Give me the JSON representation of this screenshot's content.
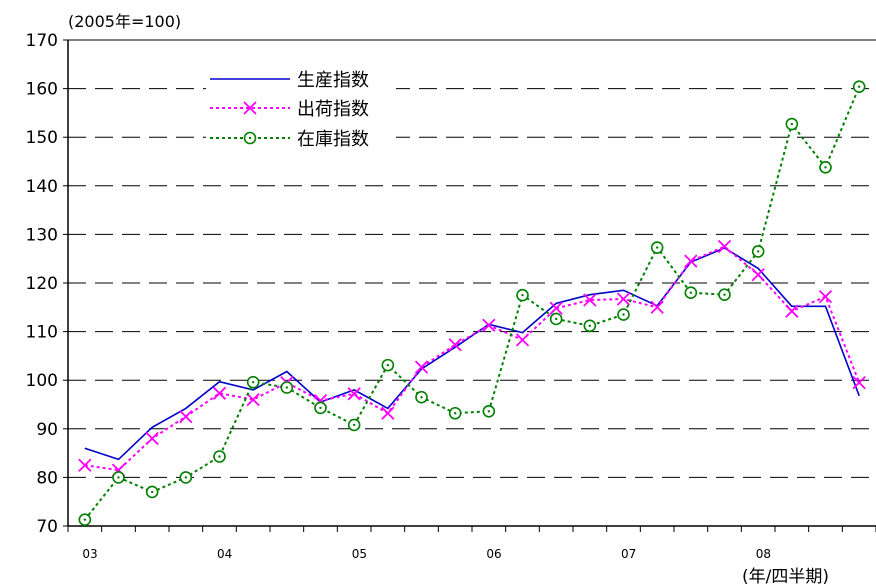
{
  "chart_data": {
    "type": "line",
    "unit_label": "(2005年=100)",
    "period_label": "(年/四半期)",
    "ylim": [
      70,
      170
    ],
    "yticks": [
      70,
      80,
      90,
      100,
      110,
      120,
      130,
      140,
      150,
      160,
      170
    ],
    "x_year_labels": [
      "03",
      "04",
      "05",
      "06",
      "07",
      "08"
    ],
    "x_year_start_index": [
      0,
      4,
      8,
      12,
      16,
      20
    ],
    "grid": true,
    "legend_position": "top-left",
    "series": [
      {
        "name": "生産指数",
        "color": "#0000cc",
        "style": "solid",
        "marker": "none",
        "values": [
          86,
          83.7,
          90.3,
          94.2,
          99.7,
          98,
          101.8,
          95.5,
          98,
          94.2,
          102.3,
          106.8,
          111.5,
          109.8,
          115.8,
          117.6,
          118.5,
          115.3,
          124.3,
          127.2,
          123,
          115.2,
          115.2,
          96.8
        ]
      },
      {
        "name": "出荷指数",
        "color": "#ff00ff",
        "style": "dotted",
        "marker": "x",
        "values": [
          82.5,
          81.5,
          88,
          92.5,
          97.3,
          96,
          99.5,
          95.8,
          97.2,
          93.2,
          102.7,
          107.3,
          111.3,
          108.3,
          114.8,
          116.5,
          116.7,
          115,
          124.5,
          127.5,
          121.7,
          114.2,
          117.2,
          99.5
        ]
      },
      {
        "name": "在庫指数",
        "color": "#008000",
        "style": "dotted",
        "marker": "circle",
        "values": [
          71.3,
          80,
          77,
          80,
          84.3,
          99.6,
          98.5,
          94.3,
          90.8,
          103.1,
          96.5,
          93.2,
          93.6,
          117.5,
          112.6,
          111.2,
          113.5,
          127.3,
          118,
          117.6,
          126.5,
          152.7,
          143.8,
          160.4
        ]
      }
    ]
  }
}
